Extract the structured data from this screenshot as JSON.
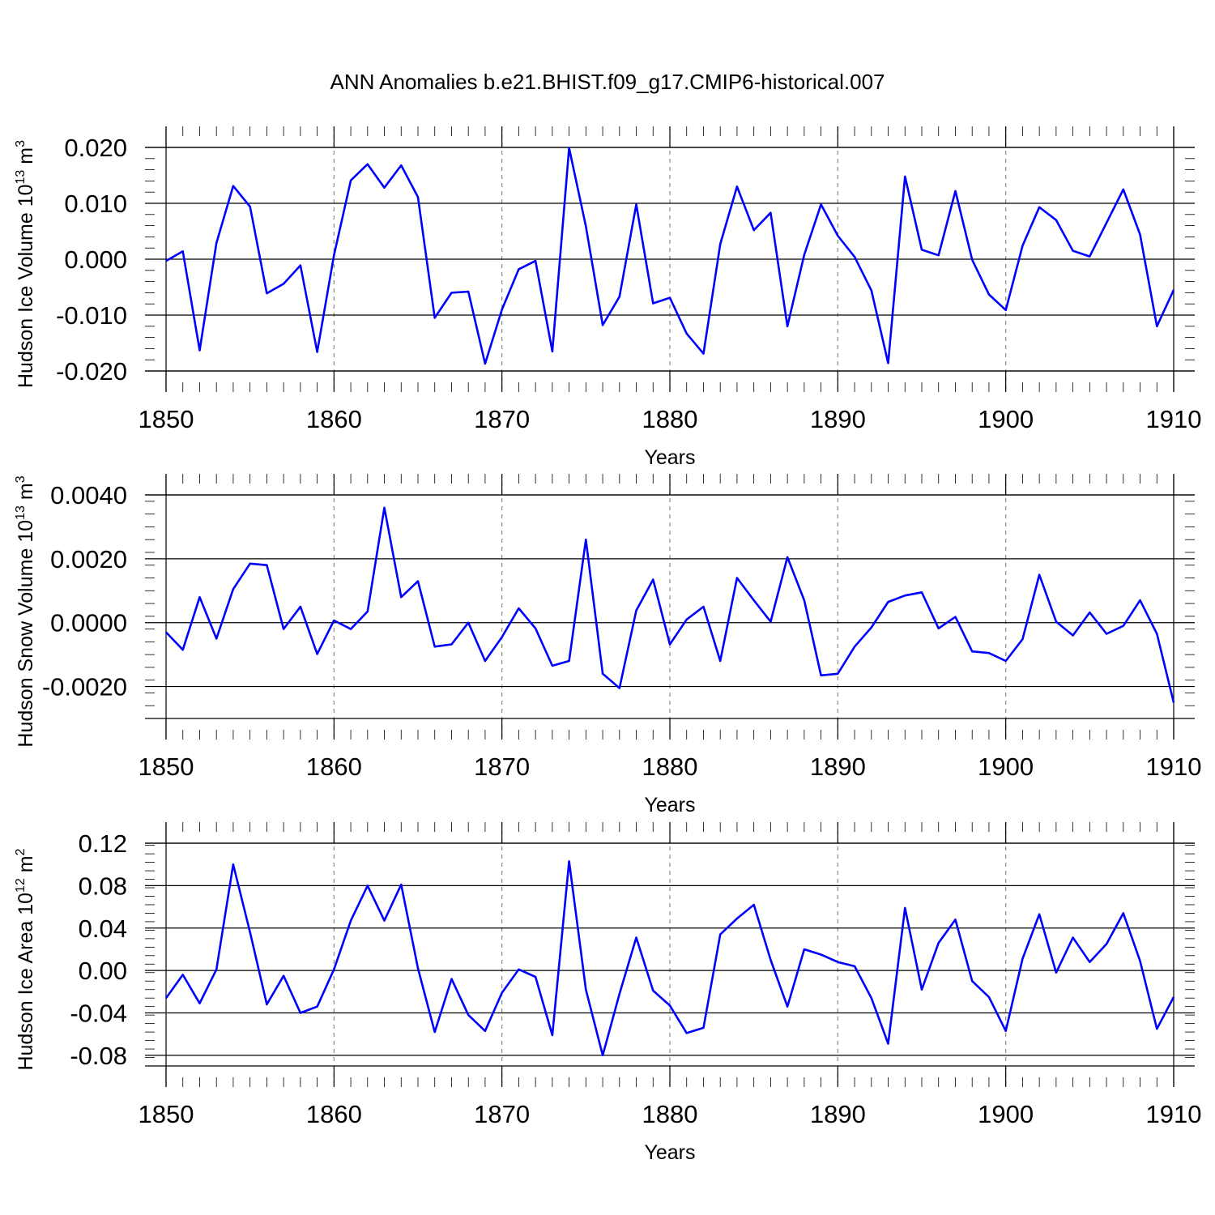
{
  "title": "ANN Anomalies b.e21.BHIST.f09_g17.CMIP6-historical.007",
  "colors": {
    "series": "#0000ff",
    "grid": "#888888"
  },
  "chart_data": [
    {
      "type": "line",
      "title": "ANN Anomalies b.e21.BHIST.f09_g17.CMIP6-historical.007",
      "xlabel": "Years",
      "ylabel": "Hudson Ice Volume 10",
      "ylabel_exp": "13",
      "ylabel_unit": " m",
      "ylabel_unit_exp": "3",
      "xlim": [
        1850,
        1910
      ],
      "ylim": [
        -0.02,
        0.02
      ],
      "x_ticks": [
        "1850",
        "1860",
        "1870",
        "1880",
        "1890",
        "1900",
        "1910"
      ],
      "y_ticks": [
        {
          "v": 0.02,
          "label": "0.020"
        },
        {
          "v": 0.01,
          "label": "0.010"
        },
        {
          "v": 0.0,
          "label": "0.000"
        },
        {
          "v": -0.01,
          "label": "-0.010"
        },
        {
          "v": -0.02,
          "label": "-0.020"
        }
      ],
      "x": [
        1850,
        1851,
        1852,
        1853,
        1854,
        1855,
        1856,
        1857,
        1858,
        1859,
        1860,
        1861,
        1862,
        1863,
        1864,
        1865,
        1866,
        1867,
        1868,
        1869,
        1870,
        1871,
        1872,
        1873,
        1874,
        1875,
        1876,
        1877,
        1878,
        1879,
        1880,
        1881,
        1882,
        1883,
        1884,
        1885,
        1886,
        1887,
        1888,
        1889,
        1890,
        1891,
        1892,
        1893,
        1894,
        1895,
        1896,
        1897,
        1898,
        1899,
        1900,
        1901,
        1902,
        1903,
        1904,
        1905,
        1906,
        1907,
        1908,
        1909,
        1910
      ],
      "values": [
        -0.0003,
        0.0014,
        -0.0163,
        0.0029,
        0.0131,
        0.0094,
        -0.0061,
        -0.0044,
        -0.0011,
        -0.0166,
        0.0007,
        0.0141,
        0.017,
        0.0128,
        0.0168,
        0.0111,
        -0.0105,
        -0.006,
        -0.0058,
        -0.0187,
        -0.009,
        -0.0018,
        -0.0003,
        -0.0165,
        0.0199,
        0.0059,
        -0.0118,
        -0.0067,
        0.0098,
        -0.0079,
        -0.0069,
        -0.0133,
        -0.0169,
        0.0027,
        0.013,
        0.0052,
        0.0083,
        -0.012,
        0.0008,
        0.0098,
        0.0042,
        0.0004,
        -0.0056,
        -0.0186,
        0.0148,
        0.0017,
        0.0007,
        0.0122,
        -0.0001,
        -0.0063,
        -0.0091,
        0.0024,
        0.0093,
        0.007,
        0.0015,
        0.0005,
        0.0065,
        0.0125,
        0.0044,
        -0.012,
        -0.0055
      ]
    },
    {
      "type": "line",
      "xlabel": "Years",
      "ylabel": "Hudson Snow Volume 10",
      "ylabel_exp": "13",
      "ylabel_unit": " m",
      "ylabel_unit_exp": "3",
      "xlim": [
        1850,
        1910
      ],
      "ylim": [
        -0.003,
        0.004
      ],
      "x_ticks": [
        "1850",
        "1860",
        "1870",
        "1880",
        "1890",
        "1900",
        "1910"
      ],
      "y_ticks": [
        {
          "v": 0.004,
          "label": "0.0040"
        },
        {
          "v": 0.002,
          "label": "0.0020"
        },
        {
          "v": 0.0,
          "label": "0.0000"
        },
        {
          "v": -0.002,
          "label": "-0.0020"
        }
      ],
      "x": [
        1850,
        1851,
        1852,
        1853,
        1854,
        1855,
        1856,
        1857,
        1858,
        1859,
        1860,
        1861,
        1862,
        1863,
        1864,
        1865,
        1866,
        1867,
        1868,
        1869,
        1870,
        1871,
        1872,
        1873,
        1874,
        1875,
        1876,
        1877,
        1878,
        1879,
        1880,
        1881,
        1882,
        1883,
        1884,
        1885,
        1886,
        1887,
        1888,
        1889,
        1890,
        1891,
        1892,
        1893,
        1894,
        1895,
        1896,
        1897,
        1898,
        1899,
        1900,
        1901,
        1902,
        1903,
        1904,
        1905,
        1906,
        1907,
        1908,
        1909,
        1910
      ],
      "values": [
        -0.0003,
        -0.00085,
        0.0008,
        -0.0005,
        0.00105,
        0.00185,
        0.0018,
        -0.0002,
        0.0005,
        -0.00098,
        7e-05,
        -0.0002,
        0.00035,
        0.0036,
        0.0008,
        0.0013,
        -0.00075,
        -0.00068,
        0.0,
        -0.0012,
        -0.00045,
        0.00045,
        -0.00018,
        -0.00135,
        -0.0012,
        0.0026,
        -0.0016,
        -0.00205,
        0.00038,
        0.00135,
        -0.00068,
        0.0001,
        0.0005,
        -0.0012,
        0.0014,
        0.0007,
        3e-05,
        0.00205,
        0.0007,
        -0.00165,
        -0.0016,
        -0.00075,
        -0.00015,
        0.00065,
        0.00085,
        0.00095,
        -0.00018,
        0.00018,
        -0.0009,
        -0.00095,
        -0.0012,
        -0.00052,
        0.0015,
        3e-05,
        -0.0004,
        0.00032,
        -0.00035,
        -0.0001,
        0.0007,
        -0.00035,
        -0.0025
      ]
    },
    {
      "type": "line",
      "xlabel": "Years",
      "ylabel": "Hudson Ice Area 10",
      "ylabel_exp": "12",
      "ylabel_unit": " m",
      "ylabel_unit_exp": "2",
      "xlim": [
        1850,
        1910
      ],
      "ylim": [
        -0.09,
        0.12
      ],
      "x_ticks": [
        "1850",
        "1860",
        "1870",
        "1880",
        "1890",
        "1900",
        "1910"
      ],
      "y_ticks": [
        {
          "v": 0.12,
          "label": "0.12"
        },
        {
          "v": 0.08,
          "label": "0.08"
        },
        {
          "v": 0.04,
          "label": "0.04"
        },
        {
          "v": 0.0,
          "label": "0.00"
        },
        {
          "v": -0.04,
          "label": "-0.04"
        },
        {
          "v": -0.08,
          "label": "-0.08"
        }
      ],
      "x": [
        1850,
        1851,
        1852,
        1853,
        1854,
        1855,
        1856,
        1857,
        1858,
        1859,
        1860,
        1861,
        1862,
        1863,
        1864,
        1865,
        1866,
        1867,
        1868,
        1869,
        1870,
        1871,
        1872,
        1873,
        1874,
        1875,
        1876,
        1877,
        1878,
        1879,
        1880,
        1881,
        1882,
        1883,
        1884,
        1885,
        1886,
        1887,
        1888,
        1889,
        1890,
        1891,
        1892,
        1893,
        1894,
        1895,
        1896,
        1897,
        1898,
        1899,
        1900,
        1901,
        1902,
        1903,
        1904,
        1905,
        1906,
        1907,
        1908,
        1909,
        1910
      ],
      "values": [
        -0.026,
        -0.004,
        -0.031,
        0.001,
        0.1,
        0.036,
        -0.032,
        -0.005,
        -0.04,
        -0.034,
        0.001,
        0.047,
        0.08,
        0.047,
        0.081,
        0.002,
        -0.058,
        -0.008,
        -0.042,
        -0.057,
        -0.021,
        0.001,
        -0.006,
        -0.061,
        0.103,
        -0.018,
        -0.08,
        -0.022,
        0.031,
        -0.019,
        -0.033,
        -0.059,
        -0.054,
        0.034,
        0.049,
        0.062,
        0.01,
        -0.034,
        0.02,
        0.015,
        0.008,
        0.004,
        -0.026,
        -0.069,
        0.059,
        -0.018,
        0.026,
        0.048,
        -0.01,
        -0.025,
        -0.057,
        0.011,
        0.053,
        -0.002,
        0.031,
        0.008,
        0.025,
        0.054,
        0.009,
        -0.055,
        -0.025
      ]
    }
  ]
}
